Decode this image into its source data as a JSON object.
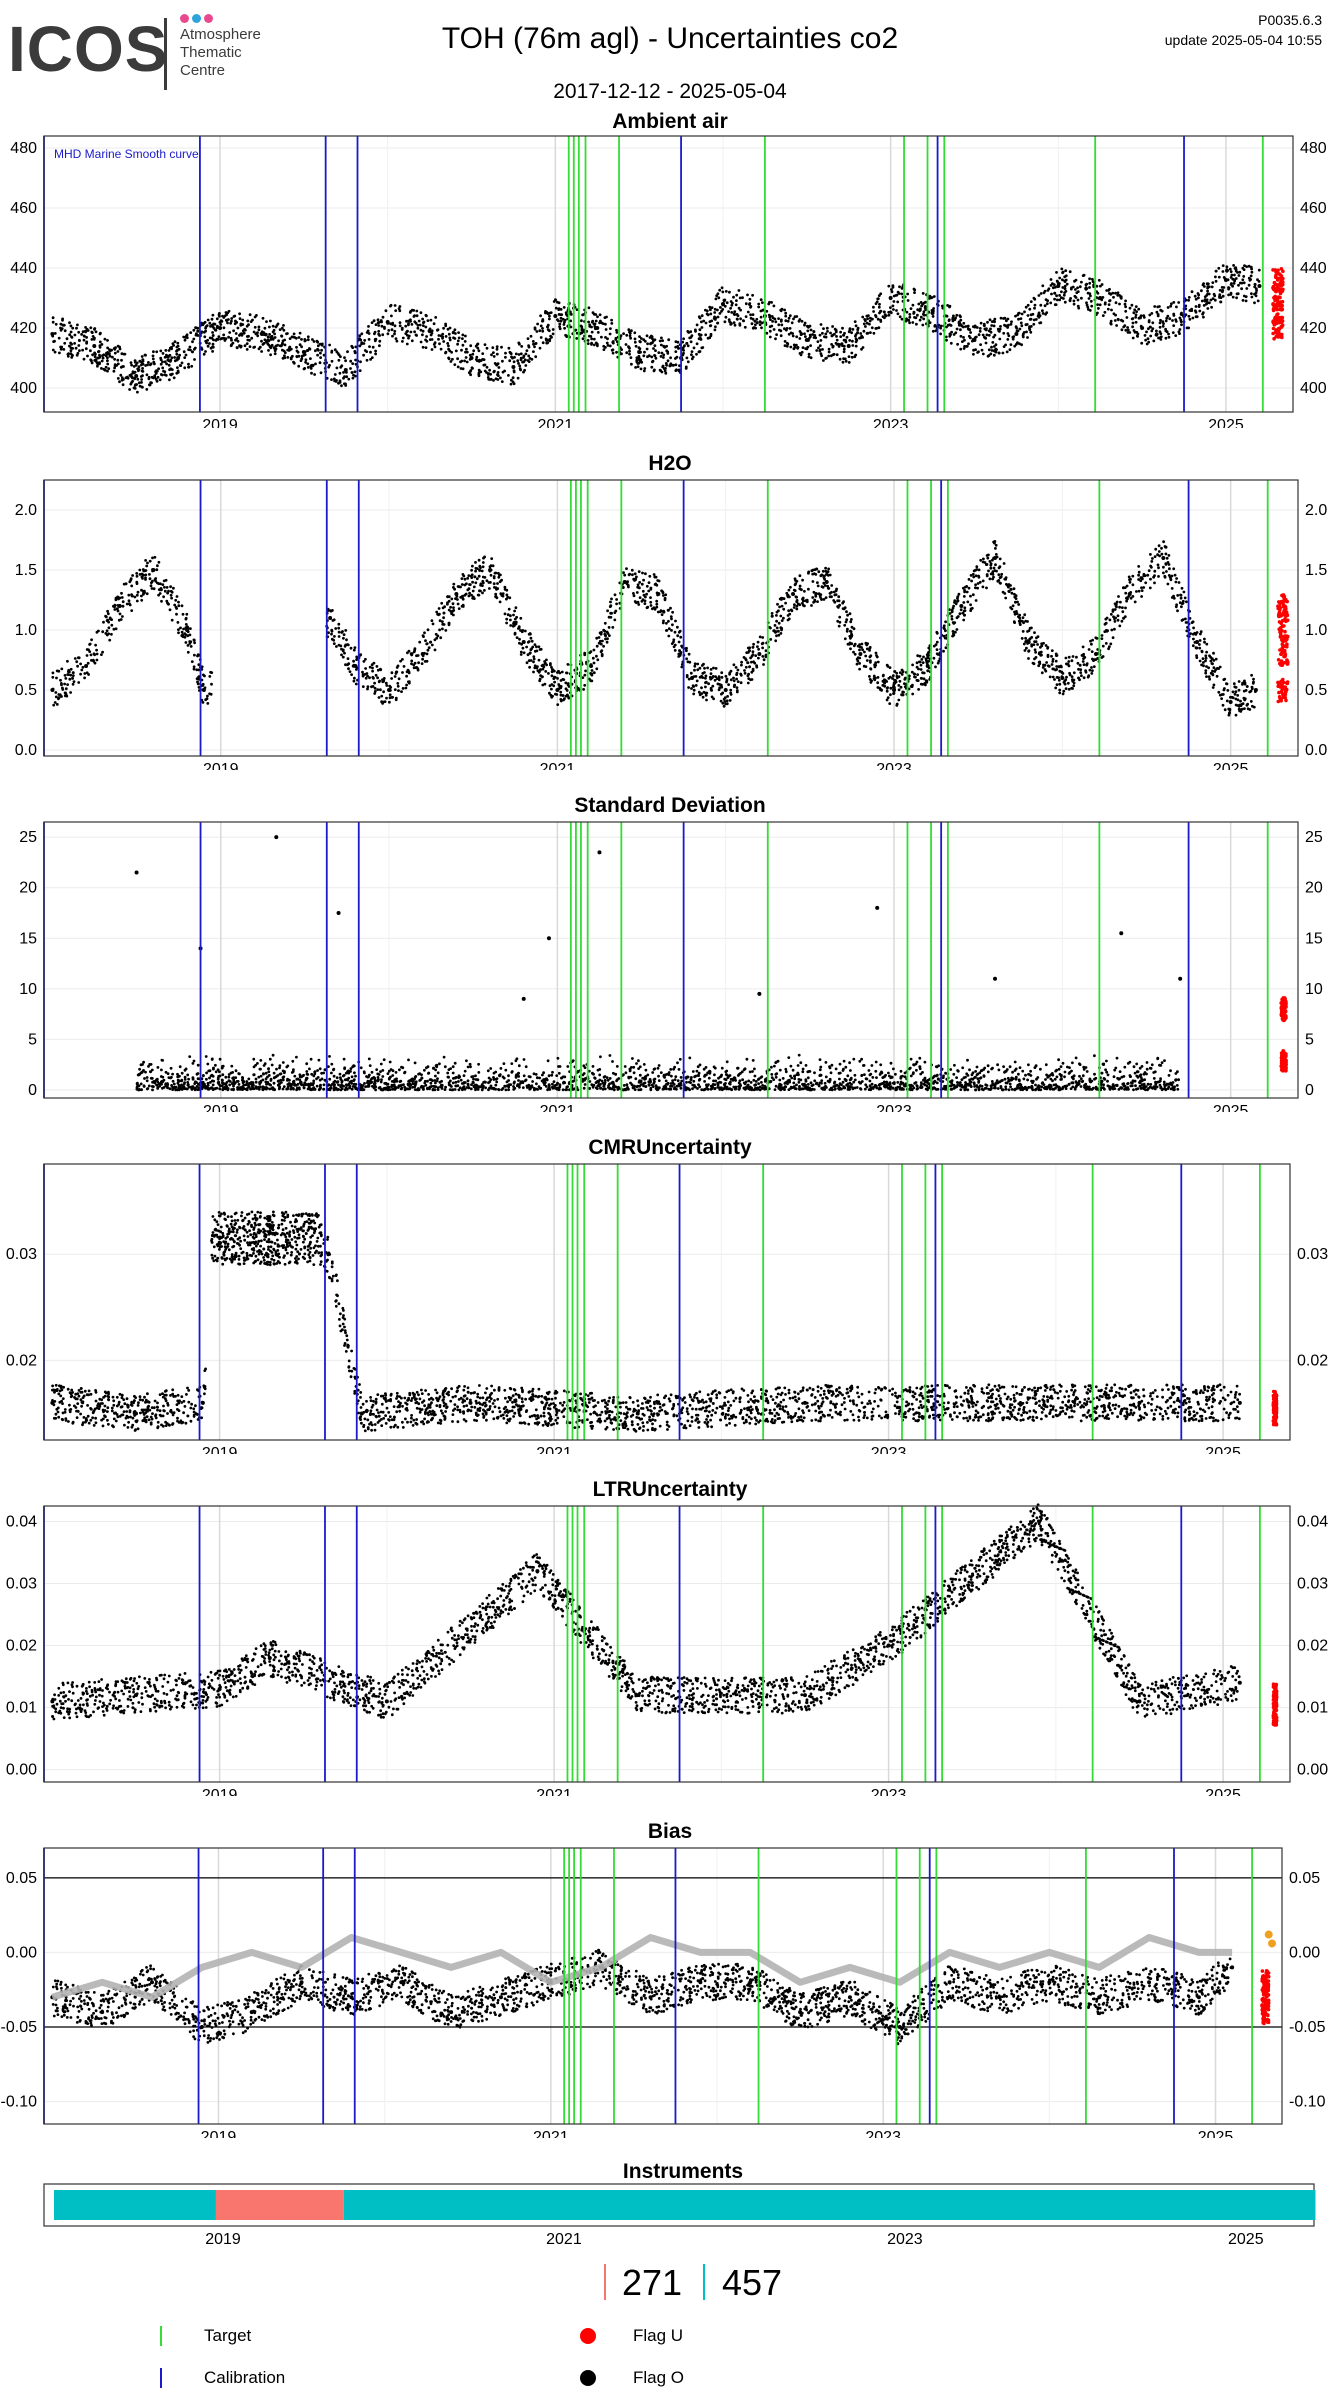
{
  "logo": {
    "word": "ICOS",
    "lines": [
      "Atmosphere",
      "Thematic",
      "Centre"
    ],
    "dot_colors": [
      "#e94a8f",
      "#2ea3dc",
      "#e94a8f"
    ]
  },
  "header": {
    "title": "TOH  (76m agl) - Uncertainties co2",
    "date_range": "2017-12-12 - 2025-05-04",
    "version": "P0035.6.3",
    "update": "update  2025-05-04 10:55"
  },
  "colors": {
    "flag_o": "#000000",
    "flag_u": "#ff0000",
    "target": "#33dd33",
    "calibration": "#1a1acc",
    "smooth": "#b3b3b3",
    "bias_recent": "#f0a020",
    "instrument_a": "#00bfc4",
    "instrument_b": "#f8766d"
  },
  "chart_data": [
    {
      "type": "scatter",
      "title": "Ambient air",
      "annotation": "MHD Marine Smooth curve",
      "x_ticks": [
        "2019",
        "2021",
        "2023",
        "2025"
      ],
      "y_ticks": [
        400,
        420,
        440,
        460,
        480
      ],
      "ylim": [
        392,
        484
      ],
      "xlim": [
        2017.95,
        2025.4
      ],
      "grid": true,
      "series": [
        {
          "name": "Flag O",
          "x": [
            2018.0,
            2018.25,
            2018.5,
            2018.75,
            2019.0,
            2019.25,
            2019.5,
            2019.75,
            2020.0,
            2020.25,
            2020.5,
            2020.75,
            2021.0,
            2021.25,
            2021.5,
            2021.75,
            2022.0,
            2022.25,
            2022.5,
            2022.75,
            2023.0,
            2023.25,
            2023.5,
            2023.75,
            2024.0,
            2024.25,
            2024.5,
            2024.75,
            2025.0,
            2025.2
          ],
          "y": [
            418,
            414,
            404,
            410,
            420,
            418,
            412,
            406,
            422,
            419,
            410,
            407,
            424,
            420,
            412,
            410,
            428,
            424,
            416,
            414,
            430,
            425,
            416,
            418,
            434,
            430,
            420,
            424,
            436,
            434
          ]
        },
        {
          "name": "Flag U",
          "x": [
            2025.28,
            2025.3,
            2025.32,
            2025.34
          ],
          "y": [
            436,
            430,
            425,
            420
          ]
        }
      ]
    },
    {
      "type": "scatter",
      "title": "H2O",
      "x_ticks": [
        "2019",
        "2021",
        "2023",
        "2025"
      ],
      "y_ticks": [
        "0.0",
        "0.5",
        "1.0",
        "1.5",
        "2.0"
      ],
      "ylim": [
        -0.05,
        2.25
      ],
      "xlim": [
        2017.95,
        2025.4
      ],
      "grid": true,
      "series": [
        {
          "name": "Flag O",
          "x": [
            2018.0,
            2018.2,
            2018.4,
            2018.6,
            2018.8,
            2018.9,
            2019.65,
            2019.8,
            2020.0,
            2020.2,
            2020.4,
            2020.6,
            2020.8,
            2021.0,
            2021.2,
            2021.4,
            2021.6,
            2021.8,
            2022.0,
            2022.2,
            2022.4,
            2022.6,
            2022.8,
            2023.0,
            2023.2,
            2023.4,
            2023.6,
            2023.8,
            2024.0,
            2024.2,
            2024.4,
            2024.6,
            2024.8,
            2025.0,
            2025.15
          ],
          "y": [
            0.5,
            0.7,
            1.2,
            1.5,
            1.0,
            0.5,
            1.1,
            0.7,
            0.5,
            0.8,
            1.3,
            1.5,
            0.9,
            0.5,
            0.7,
            1.4,
            1.3,
            0.6,
            0.5,
            0.8,
            1.3,
            1.4,
            0.8,
            0.5,
            0.7,
            1.2,
            1.6,
            0.9,
            0.6,
            0.8,
            1.3,
            1.6,
            0.9,
            0.4,
            0.5
          ]
        },
        {
          "name": "Flag U",
          "x": [
            2025.28,
            2025.3,
            2025.32,
            2025.34
          ],
          "y": [
            0.5,
            0.8,
            1.0,
            1.2
          ]
        }
      ]
    },
    {
      "type": "scatter",
      "title": "Standard Deviation",
      "x_ticks": [
        "2019",
        "2021",
        "2023",
        "2025"
      ],
      "y_ticks": [
        0,
        5,
        10,
        15,
        20,
        25
      ],
      "ylim": [
        -0.8,
        26.5
      ],
      "xlim": [
        2017.95,
        2025.4
      ],
      "grid": true,
      "series": [
        {
          "name": "Flag O",
          "x": [
            2018.5,
            2018.88,
            2019.33,
            2019.7,
            2020.8,
            2020.95,
            2021.25,
            2022.2,
            2022.9,
            2023.6,
            2024.35,
            2024.7
          ],
          "y": [
            21.5,
            14,
            25,
            17.5,
            9,
            15,
            23.5,
            9.5,
            18,
            11,
            15.5,
            11
          ]
        },
        {
          "name": "Flag U",
          "x": [
            2025.3,
            2025.33
          ],
          "y": [
            3,
            8
          ]
        }
      ]
    },
    {
      "type": "scatter",
      "title": "CMRUncertainty",
      "x_ticks": [
        "2019",
        "2021",
        "2023",
        "2025"
      ],
      "y_ticks": [
        "0.02",
        "0.03"
      ],
      "ylim": [
        0.0125,
        0.0385
      ],
      "xlim": [
        2017.95,
        2025.4
      ],
      "grid": true,
      "series": [
        {
          "name": "Flag O",
          "x": [
            2018.0,
            2018.5,
            2018.9,
            2019.0,
            2019.3,
            2019.65,
            2019.85,
            2020.5,
            2021.5,
            2022.5,
            2023.5,
            2024.5,
            2025.1
          ],
          "y": [
            0.016,
            0.015,
            0.016,
            0.031,
            0.032,
            0.03,
            0.015,
            0.016,
            0.015,
            0.016,
            0.016,
            0.016,
            0.016
          ]
        },
        {
          "name": "Flag U",
          "x": [
            2025.3,
            2025.32
          ],
          "y": [
            0.016,
            0.015
          ]
        }
      ]
    },
    {
      "type": "scatter",
      "title": "LTRUncertainty",
      "x_ticks": [
        "2019",
        "2021",
        "2023",
        "2025"
      ],
      "y_ticks": [
        "0.00",
        "0.01",
        "0.02",
        "0.03",
        "0.04"
      ],
      "ylim": [
        -0.002,
        0.0425
      ],
      "xlim": [
        2017.95,
        2025.4
      ],
      "grid": true,
      "series": [
        {
          "name": "Flag O",
          "x": [
            2018.0,
            2018.5,
            2019.0,
            2019.3,
            2020.0,
            2020.9,
            2021.5,
            2022.5,
            2023.0,
            2023.9,
            2024.5,
            2025.1
          ],
          "y": [
            0.011,
            0.012,
            0.013,
            0.018,
            0.011,
            0.032,
            0.012,
            0.012,
            0.02,
            0.04,
            0.011,
            0.014
          ]
        },
        {
          "name": "Flag U",
          "x": [
            2025.3,
            2025.32
          ],
          "y": [
            0.012,
            0.009
          ]
        }
      ]
    },
    {
      "type": "scatter",
      "title": "Bias",
      "x_ticks": [
        "2019",
        "2021",
        "2023",
        "2025"
      ],
      "y_ticks": [
        "-0.10",
        "-0.05",
        "0.00",
        "0.05"
      ],
      "ylim": [
        -0.115,
        0.07
      ],
      "xlim": [
        2017.95,
        2025.4
      ],
      "grid": true,
      "reference_lines": [
        -0.05,
        0.05
      ],
      "series": [
        {
          "name": "Flag O",
          "x": [
            2018.0,
            2018.3,
            2018.6,
            2018.9,
            2019.2,
            2019.5,
            2019.8,
            2020.1,
            2020.4,
            2020.7,
            2021.0,
            2021.3,
            2021.6,
            2021.9,
            2022.2,
            2022.5,
            2022.8,
            2023.1,
            2023.4,
            2023.7,
            2024.0,
            2024.3,
            2024.6,
            2024.9,
            2025.1
          ],
          "y": [
            -0.03,
            -0.04,
            -0.02,
            -0.05,
            -0.04,
            -0.02,
            -0.03,
            -0.02,
            -0.04,
            -0.03,
            -0.02,
            -0.01,
            -0.03,
            -0.02,
            -0.02,
            -0.04,
            -0.03,
            -0.05,
            -0.02,
            -0.03,
            -0.02,
            -0.03,
            -0.02,
            -0.03,
            -0.01
          ]
        },
        {
          "name": "Flag U",
          "x": [
            2025.28,
            2025.3,
            2025.32
          ],
          "y": [
            -0.02,
            -0.03,
            -0.04
          ]
        },
        {
          "name": "Smooth",
          "x": [
            2018.0,
            2018.3,
            2018.6,
            2018.9,
            2019.2,
            2019.5,
            2019.8,
            2020.1,
            2020.4,
            2020.7,
            2021.0,
            2021.3,
            2021.6,
            2021.9,
            2022.2,
            2022.5,
            2022.8,
            2023.1,
            2023.4,
            2023.7,
            2024.0,
            2024.3,
            2024.6,
            2024.9,
            2025.1
          ],
          "y": [
            -0.03,
            -0.02,
            -0.03,
            -0.01,
            0.0,
            -0.01,
            0.01,
            0.0,
            -0.01,
            0.0,
            -0.02,
            -0.01,
            0.01,
            0.0,
            0.0,
            -0.02,
            -0.01,
            -0.02,
            0.0,
            -0.01,
            0.0,
            -0.01,
            0.01,
            0.0,
            0.0
          ]
        }
      ]
    }
  ],
  "calibration_years": [
    2017.95,
    2018.88,
    2019.63,
    2019.82,
    2021.75,
    2023.28,
    2024.75
  ],
  "target_years": [
    2021.08,
    2021.11,
    2021.14,
    2021.18,
    2021.38,
    2022.25,
    2023.08,
    2023.22,
    2023.32,
    2024.22,
    2025.22
  ],
  "instruments": {
    "title": "Instruments",
    "x_ticks": [
      "2019",
      "2021",
      "2023",
      "2025"
    ],
    "xlim": [
      2017.95,
      2025.4
    ],
    "segments": [
      {
        "start": 2017.95,
        "end": 2018.9,
        "instrument": "457"
      },
      {
        "start": 2018.9,
        "end": 2019.65,
        "instrument": "271"
      },
      {
        "start": 2019.65,
        "end": 2025.35,
        "instrument": "457"
      }
    ],
    "labels": [
      {
        "name": "271",
        "color_key": "instrument_b"
      },
      {
        "name": "457",
        "color_key": "instrument_a"
      }
    ]
  },
  "legend": {
    "target": "Target",
    "calibration": "Calibration",
    "flag_u": "Flag U",
    "flag_o": "Flag O"
  }
}
